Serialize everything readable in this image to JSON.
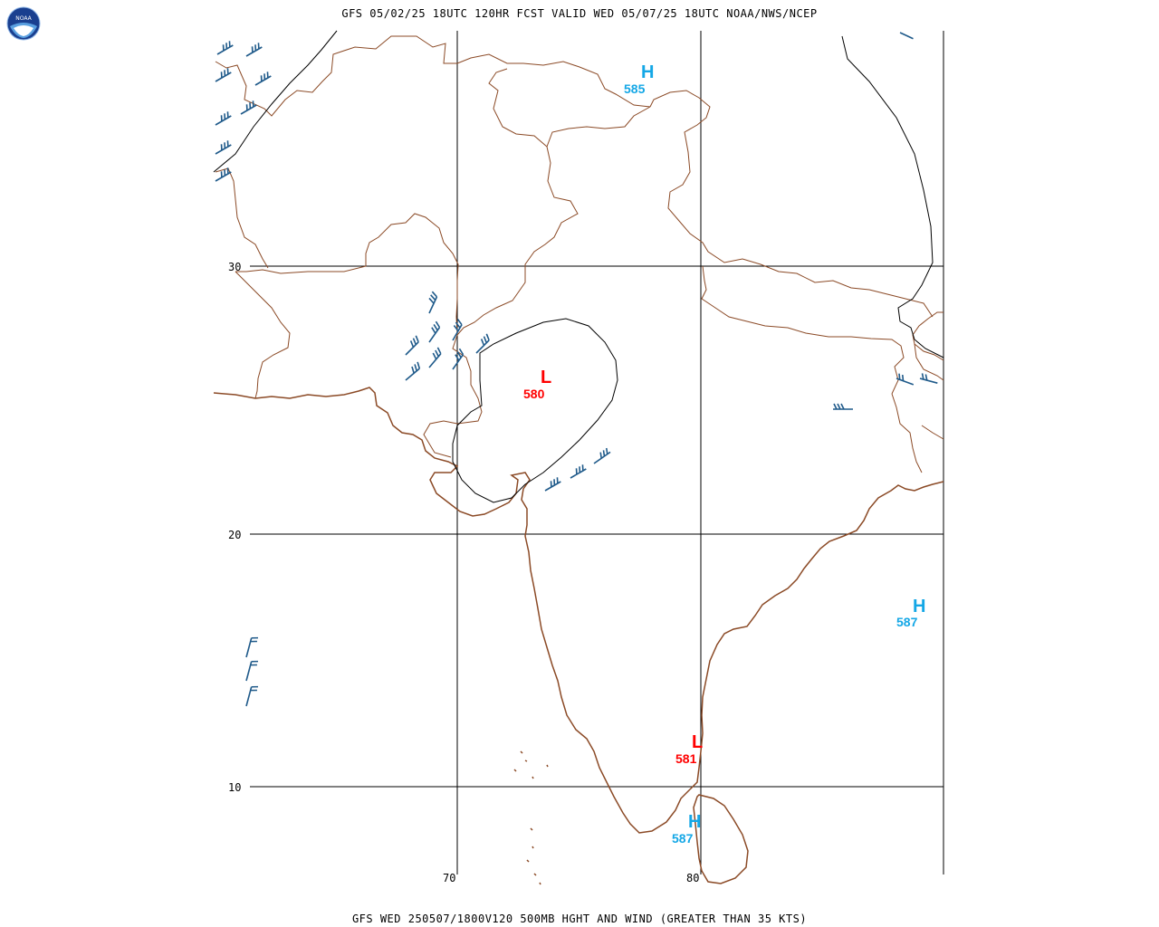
{
  "header": {
    "title": "GFS 05/02/25 18UTC 120HR FCST VALID WED 05/07/25 18UTC NOAA/NWS/NCEP",
    "footer": "GFS WED 250507/1800V120 500MB HGHT AND WIND (GREATER THAN 35 KTS)"
  },
  "logo": {
    "text": "NOAA",
    "icon": "noaa-logo-icon"
  },
  "grid": {
    "lat_labels": [
      "30",
      "20",
      "10"
    ],
    "lon_labels": [
      "70",
      "80"
    ]
  },
  "pressure_centers": [
    {
      "kind": "H",
      "value": "585",
      "color": "#14a7e6"
    },
    {
      "kind": "L",
      "value": "580",
      "color": "#ff0000"
    },
    {
      "kind": "H",
      "value": "587",
      "color": "#14a7e6"
    },
    {
      "kind": "L",
      "value": "581",
      "color": "#ff0000"
    },
    {
      "kind": "H",
      "value": "587",
      "color": "#14a7e6"
    }
  ],
  "colors": {
    "coast": "#8b4a26",
    "border": "#8b4a26",
    "contour": "#000000",
    "barb": "#1f5a8a",
    "grid": "#000000"
  }
}
